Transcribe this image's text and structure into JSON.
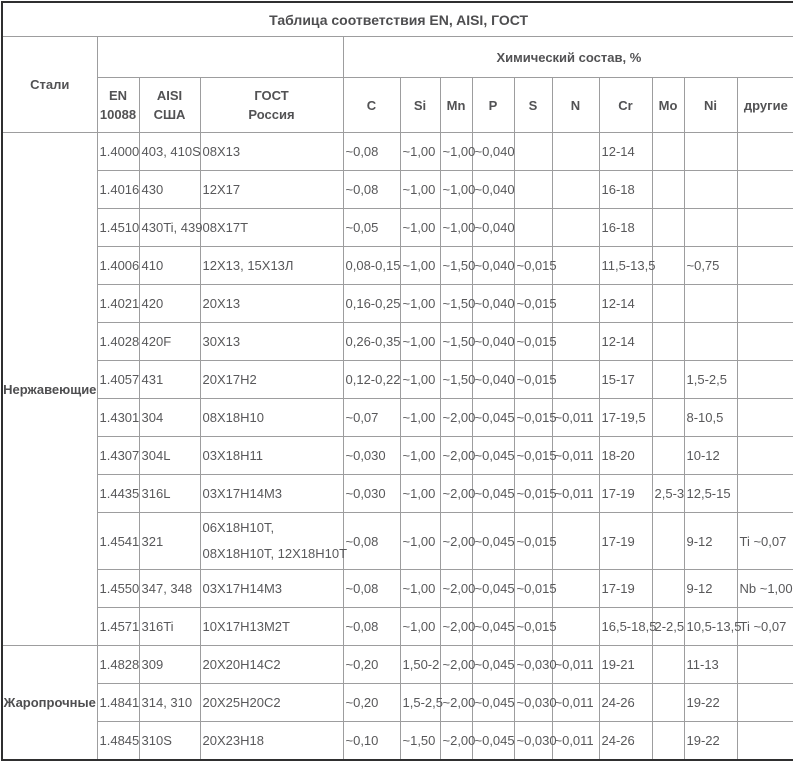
{
  "title": "Таблица соответствия EN, AISI, ГОСТ",
  "colors": {
    "text": "#58585a",
    "grid_border": "#9d9d9e",
    "outer_border": "#2f2f30",
    "background": "#ffffff"
  },
  "header": {
    "steel": "Стали",
    "spacer": "",
    "chem": "Химический состав, %",
    "en": "EN\n10088",
    "aisi": "AISI\nСША",
    "gost": "ГОСТ\nРоссия",
    "chem_cols": [
      "C",
      "Si",
      "Mn",
      "P",
      "S",
      "N",
      "Cr",
      "Mo",
      "Ni",
      "другие"
    ]
  },
  "chart_data": {
    "type": "table",
    "title": "Таблица соответствия EN, AISI, ГОСТ",
    "columns": [
      "Стали",
      "EN 10088",
      "AISI США",
      "ГОСТ Россия",
      "C",
      "Si",
      "Mn",
      "P",
      "S",
      "N",
      "Cr",
      "Mo",
      "Ni",
      "другие"
    ]
  },
  "groups": [
    {
      "label": "Нержавеющие",
      "rows": [
        [
          "1.4000",
          "403, 410S",
          "08Х13",
          "~0,08",
          "~1,00",
          "~1,00",
          "~0,040",
          "",
          "",
          "12-14",
          "",
          "",
          ""
        ],
        [
          "1.4016",
          "430",
          "12Х17",
          "~0,08",
          "~1,00",
          "~1,00",
          "~0,040",
          "",
          "",
          "16-18",
          "",
          "",
          ""
        ],
        [
          "1.4510",
          "430Ti, 439",
          "08Х17Т",
          "~0,05",
          "~1,00",
          "~1,00",
          "~0,040",
          "",
          "",
          "16-18",
          "",
          "",
          ""
        ],
        [
          "1.4006",
          "410",
          "12Х13, 15Х13Л",
          "0,08-0,15",
          "~1,00",
          "~1,50",
          "~0,040",
          "~0,015",
          "",
          "11,5-13,5",
          "",
          "~0,75",
          ""
        ],
        [
          "1.4021",
          "420",
          "20Х13",
          "0,16-0,25",
          "~1,00",
          "~1,50",
          "~0,040",
          "~0,015",
          "",
          "12-14",
          "",
          "",
          ""
        ],
        [
          "1.4028",
          "420F",
          "30Х13",
          "0,26-0,35",
          "~1,00",
          "~1,50",
          "~0,040",
          "~0,015",
          "",
          "12-14",
          "",
          "",
          ""
        ],
        [
          "1.4057",
          "431",
          "20Х17Н2",
          "0,12-0,22",
          "~1,00",
          "~1,50",
          "~0,040",
          "~0,015",
          "",
          "15-17",
          "",
          "1,5-2,5",
          ""
        ],
        [
          "1.4301",
          "304",
          "08Х18Н10",
          "~0,07",
          "~1,00",
          "~2,00",
          "~0,045",
          "~0,015",
          "~0,011",
          "17-19,5",
          "",
          "8-10,5",
          ""
        ],
        [
          "1.4307",
          "304L",
          "03Х18Н11",
          "~0,030",
          "~1,00",
          "~2,00",
          "~0,045",
          "~0,015",
          "~0,011",
          "18-20",
          "",
          "10-12",
          ""
        ],
        [
          "1.4435",
          "316L",
          "03Х17Н14М3",
          "~0,030",
          "~1,00",
          "~2,00",
          "~0,045",
          "~0,015",
          "~0,011",
          "17-19",
          "2,5-3",
          "12,5-15",
          ""
        ],
        [
          "1.4541",
          "321",
          "06Х18Н10Т,\n08Х18Н10Т, 12Х18Н10Т",
          "~0,08",
          "~1,00",
          "~2,00",
          "~0,045",
          "~0,015",
          "",
          "17-19",
          "",
          "9-12",
          "Ti ~0,07"
        ],
        [
          "1.4550",
          "347, 348",
          "03Х17Н14М3",
          "~0,08",
          "~1,00",
          "~2,00",
          "~0,045",
          "~0,015",
          "",
          "17-19",
          "",
          "9-12",
          "Nb ~1,00"
        ],
        [
          "1.4571",
          "316Ti",
          "10Х17Н13М2Т",
          "~0,08",
          "~1,00",
          "~2,00",
          "~0,045",
          "~0,015",
          "",
          "16,5-18,5",
          "2-2,5",
          "10,5-13,5",
          "Ti ~0,07"
        ]
      ]
    },
    {
      "label": "Жаропрочные",
      "rows": [
        [
          "1.4828",
          "309",
          "20Х20Н14С2",
          "~0,20",
          "1,50-2",
          "~2,00",
          "~0,045",
          "~0,030",
          "~0,011",
          "19-21",
          "",
          "11-13",
          ""
        ],
        [
          "1.4841",
          "314, 310",
          "20Х25Н20С2",
          "~0,20",
          "1,5-2,5",
          "~2,00",
          "~0,045",
          "~0,030",
          "~0,011",
          "24-26",
          "",
          "19-22",
          ""
        ],
        [
          "1.4845",
          "310S",
          "20Х23Н18",
          "~0,10",
          "~1,50",
          "~2,00",
          "~0,045",
          "~0,030",
          "~0,011",
          "24-26",
          "",
          "19-22",
          ""
        ]
      ]
    }
  ]
}
